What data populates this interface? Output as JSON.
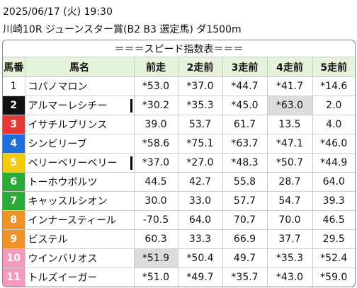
{
  "header": {
    "datetime": "2025/06/17 (火) 19:30",
    "race": "川崎10R ジューンスター賞(B2 B3 選定馬) ダ1500m"
  },
  "table": {
    "title": "＝＝＝スピード指数表＝＝＝",
    "columns": [
      "馬番",
      "馬名",
      "前走",
      "2走前",
      "3走前",
      "4走前",
      "5走前"
    ],
    "rows": [
      [
        "1",
        "コパノマロン",
        "*53.0",
        "*37.0",
        "*44.7",
        "*41.7",
        "*14.6"
      ],
      [
        "2",
        "アルマーレシチー",
        "*30.2",
        "*35.3",
        "*45.0",
        "*63.0",
        "2.0"
      ],
      [
        "3",
        "イサチルプリンス",
        "39.0",
        "53.7",
        "61.7",
        "13.5",
        "4.0"
      ],
      [
        "4",
        "シンビリーブ",
        "*58.6",
        "*75.1",
        "*63.7",
        "*47.1",
        "*46.0"
      ],
      [
        "5",
        "ベリーベリーベリー",
        "*37.0",
        "*27.0",
        "*48.3",
        "*50.7",
        "*44.9"
      ],
      [
        "6",
        "トーホウボルツ",
        "44.5",
        "42.7",
        "55.8",
        "28.7",
        "64.0"
      ],
      [
        "7",
        "キャッスルシオン",
        "30.0",
        "33.0",
        "57.7",
        "54.7",
        "39.3"
      ],
      [
        "8",
        "インナースティール",
        "-70.5",
        "64.0",
        "70.7",
        "70.0",
        "46.5"
      ],
      [
        "9",
        "ビステル",
        "60.3",
        "33.3",
        "66.9",
        "37.7",
        "29.5"
      ],
      [
        "10",
        "ウインバリオス",
        "*51.9",
        "*50.4",
        "49.7",
        "*35.3",
        "*52.4"
      ],
      [
        "11",
        "トルズイーガー",
        "*51.0",
        "*49.7",
        "*35.7",
        "*43.0",
        "*59.0"
      ]
    ]
  }
}
